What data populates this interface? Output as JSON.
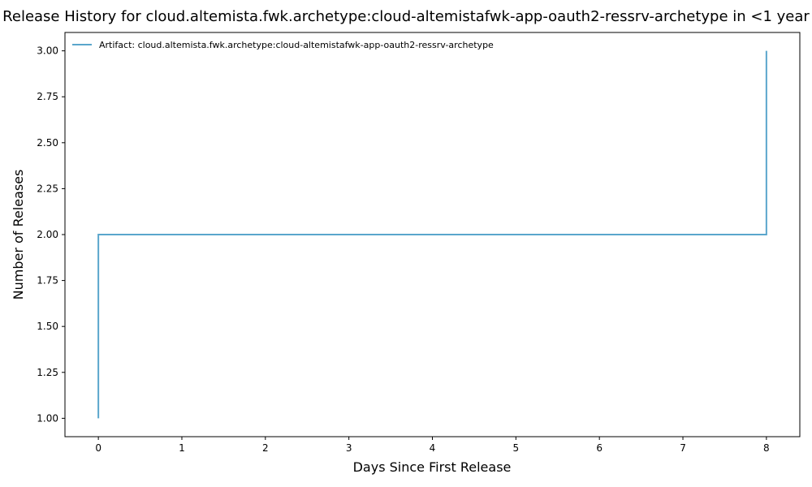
{
  "chart_data": {
    "type": "line",
    "step": "post",
    "title": "Release History for cloud.altemista.fwk.archetype:cloud-altemistafwk-app-oauth2-ressrv-archetype in <1 year",
    "xlabel": "Days Since First Release",
    "ylabel": "Number of Releases",
    "xlim": [
      -0.4,
      8.4
    ],
    "ylim": [
      0.9,
      3.1
    ],
    "xticks": [
      0,
      1,
      2,
      3,
      4,
      5,
      6,
      7,
      8
    ],
    "yticks": [
      "1.00",
      "1.25",
      "1.50",
      "1.75",
      "2.00",
      "2.25",
      "2.50",
      "2.75",
      "3.00"
    ],
    "legend_position": "top-left",
    "series": [
      {
        "name": "Artifact: cloud.altemista.fwk.archetype:cloud-altemistafwk-app-oauth2-ressrv-archetype",
        "color": "#5aa6cc",
        "x": [
          0,
          0,
          8,
          8
        ],
        "y": [
          1,
          2,
          2,
          3
        ]
      }
    ]
  }
}
